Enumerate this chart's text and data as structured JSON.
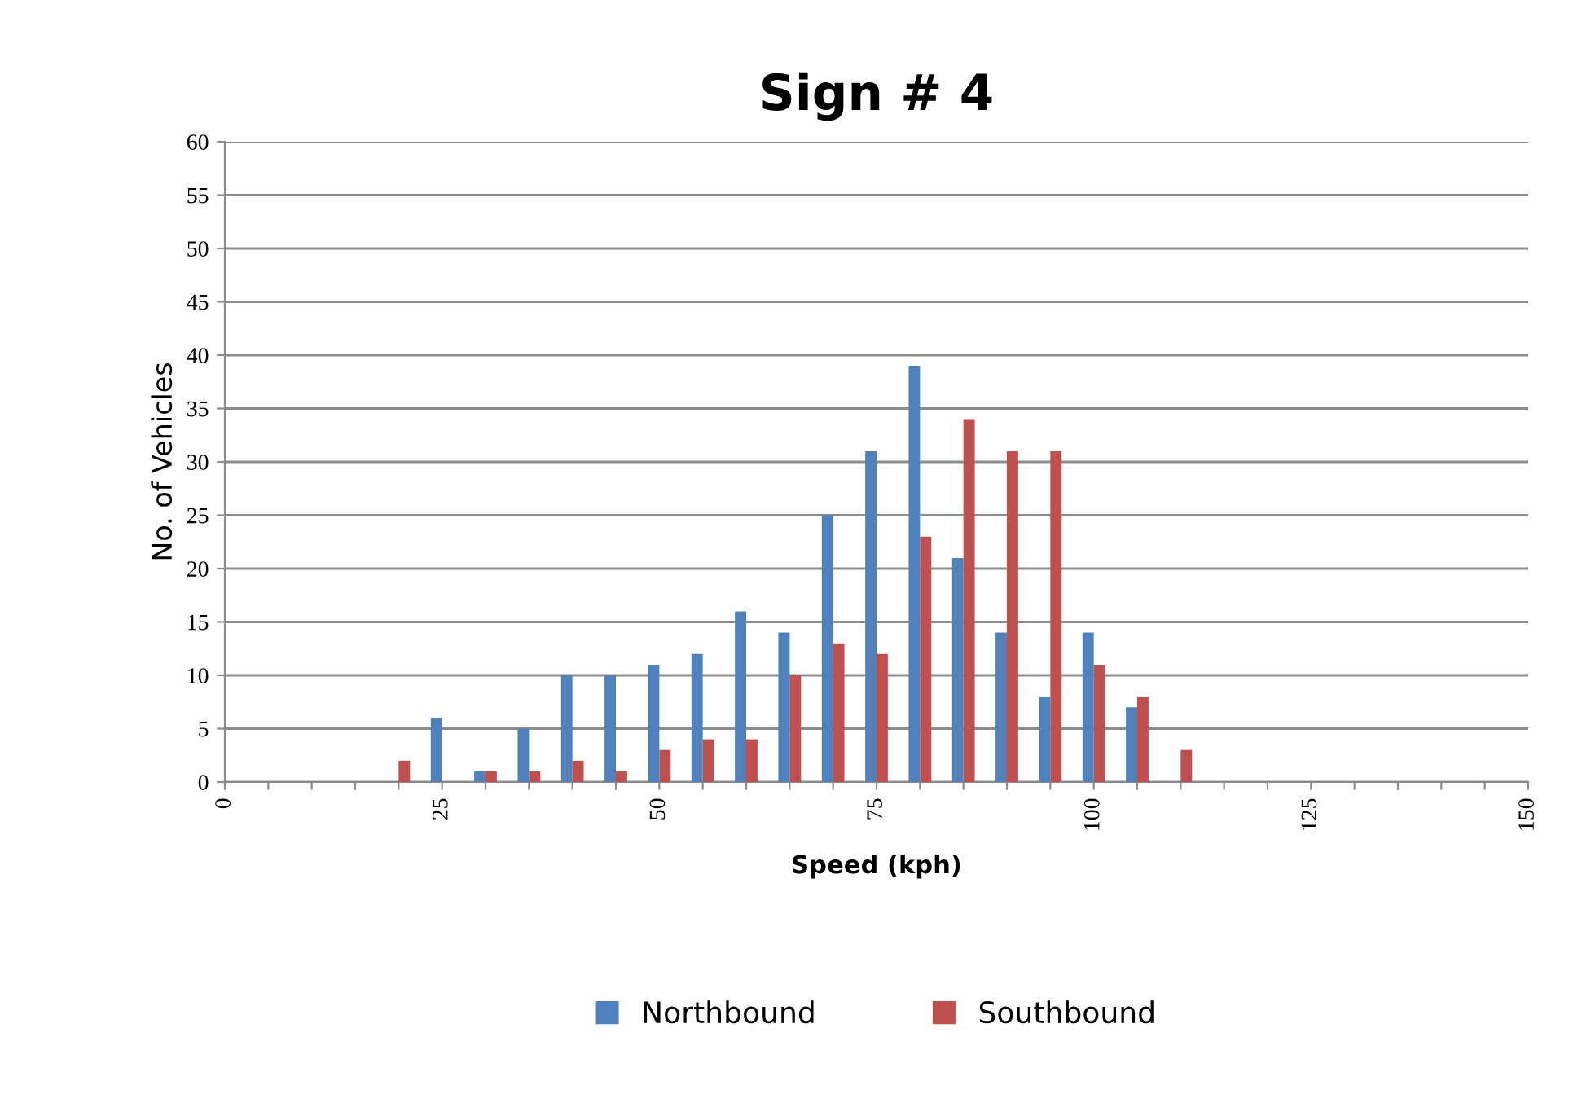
{
  "chart_data": {
    "type": "bar",
    "title": "Sign # 4",
    "xlabel": "Speed (kph)",
    "ylabel": "No. of Vehicles",
    "x": [
      20,
      25,
      30,
      35,
      40,
      45,
      50,
      55,
      60,
      65,
      70,
      75,
      80,
      85,
      90,
      95,
      100,
      105,
      110
    ],
    "series": [
      {
        "name": "Northbound",
        "color": "#4f81bd",
        "values": [
          null,
          6,
          1,
          5,
          10,
          10,
          11,
          12,
          16,
          14,
          25,
          31,
          39,
          21,
          14,
          8,
          14,
          7,
          null
        ]
      },
      {
        "name": "Southbound",
        "color": "#c0504d",
        "values": [
          2,
          null,
          1,
          1,
          2,
          1,
          3,
          4,
          4,
          10,
          13,
          12,
          23,
          34,
          31,
          31,
          11,
          8,
          3
        ]
      }
    ],
    "xlim": [
      0,
      150
    ],
    "xticks": [
      0,
      {
        "value": 5,
        "label": null
      },
      {
        "value": 10,
        "label": null
      },
      {
        "value": 15,
        "label": null
      },
      {
        "value": 20,
        "label": null
      },
      25,
      {
        "value": 30,
        "label": null
      },
      {
        "value": 35,
        "label": null
      },
      {
        "value": 40,
        "label": null
      },
      {
        "value": 45,
        "label": null
      },
      50,
      {
        "value": 55,
        "label": null
      },
      {
        "value": 60,
        "label": null
      },
      {
        "value": 65,
        "label": null
      },
      {
        "value": 70,
        "label": null
      },
      75,
      {
        "value": 80,
        "label": null
      },
      {
        "value": 85,
        "label": null
      },
      {
        "value": 90,
        "label": null
      },
      {
        "value": 95,
        "label": null
      },
      100,
      {
        "value": 105,
        "label": null
      },
      {
        "value": 110,
        "label": null
      },
      {
        "value": 115,
        "label": null
      },
      {
        "value": 120,
        "label": null
      },
      125,
      {
        "value": 130,
        "label": null
      },
      {
        "value": 135,
        "label": null
      },
      {
        "value": 140,
        "label": null
      },
      {
        "value": 145,
        "label": null
      },
      150
    ],
    "ylim": [
      0,
      60
    ],
    "yticks": [
      0,
      5,
      10,
      15,
      20,
      25,
      30,
      35,
      40,
      45,
      50,
      55,
      60
    ],
    "grid": "y",
    "legend": "bottom"
  }
}
